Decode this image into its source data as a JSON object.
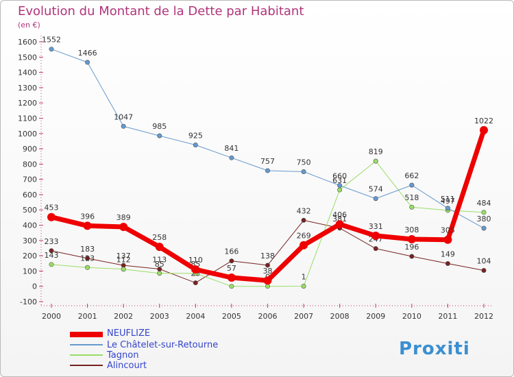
{
  "chart_data": {
    "type": "line",
    "title": "Evolution du Montant de la Dette par Habitant",
    "subtitle": "(en €)",
    "x": [
      "2000",
      "2001",
      "2002",
      "2003",
      "2004",
      "2005",
      "2006",
      "2007",
      "2008",
      "2009",
      "2010",
      "2011",
      "2012"
    ],
    "ylim": [
      -100,
      1600
    ],
    "yticks": [
      -100,
      0,
      100,
      200,
      300,
      400,
      500,
      600,
      700,
      800,
      900,
      1000,
      1100,
      1200,
      1300,
      1400,
      1500,
      1600
    ],
    "grid": false,
    "legend_position": "bottom-left",
    "series": [
      {
        "name": "NEUFLIZE",
        "color": "#ee0000",
        "values": [
          453,
          396,
          389,
          258,
          110,
          57,
          38,
          269,
          406,
          331,
          308,
          305,
          1022
        ]
      },
      {
        "name": "Le Châtelet-sur-Retourne",
        "color": "#6699cc",
        "values": [
          1552,
          1466,
          1047,
          985,
          925,
          841,
          757,
          750,
          660,
          574,
          662,
          511,
          380
        ]
      },
      {
        "name": "Tagnon",
        "color": "#99dd66",
        "values": [
          143,
          123,
          112,
          85,
          85,
          0,
          0,
          1,
          631,
          819,
          518,
          497,
          484
        ]
      },
      {
        "name": "Alincourt",
        "color": "#772222",
        "values": [
          233,
          183,
          137,
          113,
          23,
          166,
          138,
          432,
          381,
          247,
          196,
          149,
          104
        ]
      }
    ]
  },
  "branding": {
    "logo_text": "Proxiti"
  }
}
